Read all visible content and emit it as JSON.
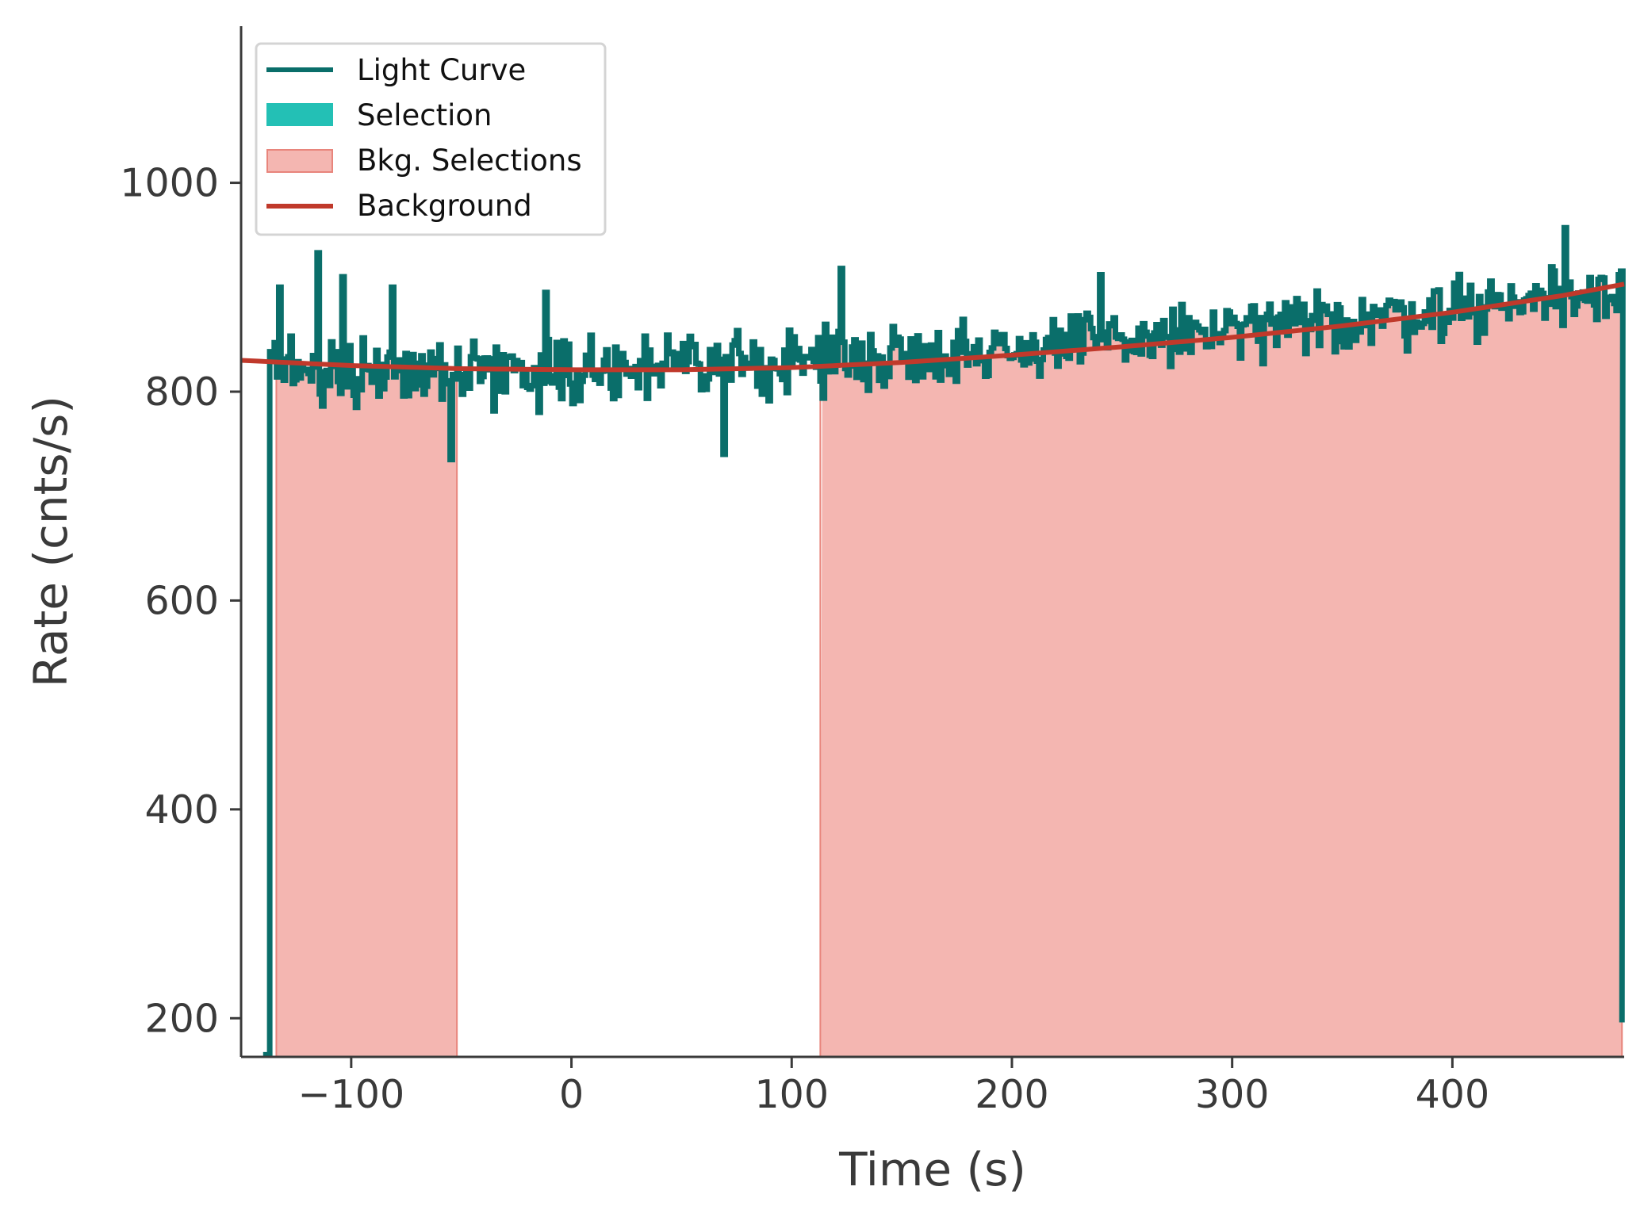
{
  "chart_data": {
    "type": "line",
    "xlabel": "Time (s)",
    "ylabel": "Rate (cnts/s)",
    "xlim": [
      -150,
      478
    ],
    "ylim": [
      163,
      1150
    ],
    "x_ticks": [
      -100,
      0,
      100,
      200,
      300,
      400
    ],
    "x_tick_labels": [
      "−100",
      "0",
      "100",
      "200",
      "300",
      "400"
    ],
    "y_ticks": [
      200,
      400,
      600,
      800,
      1000
    ],
    "y_tick_labels": [
      "200",
      "400",
      "600",
      "800",
      "1000"
    ],
    "grid": false,
    "legend_position": "top-left",
    "legend": [
      {
        "label": "Light Curve",
        "kind": "line",
        "color": "#0a6e6a"
      },
      {
        "label": "Selection",
        "kind": "patch",
        "color": "#23c0b5"
      },
      {
        "label": "Bkg. Selections",
        "kind": "patch",
        "color": "#f4b6b1"
      },
      {
        "label": "Background",
        "kind": "line",
        "color": "#c0392b"
      }
    ],
    "colors": {
      "light_curve": "#0a6e6a",
      "selection": "#23c0b5",
      "bkg_fill": "#f4b6b1",
      "bkg_edge": "#e8857c",
      "background": "#c0392b",
      "axis": "#3a3a3a"
    },
    "series": [
      {
        "name": "Light Curve",
        "time_start": -137,
        "time_end": 477,
        "pre_trigger_rate": 165,
        "post_end_rate": 196,
        "trend_start_rate": 820,
        "trend_dip_rate": 818,
        "trend_end_rate": 900,
        "noise_amplitude": 35
      },
      {
        "name": "Background",
        "x": [
          -150,
          -100,
          -50,
          0,
          50,
          100,
          150,
          200,
          250,
          300,
          350,
          400,
          450,
          478
        ],
        "y": [
          830,
          825,
          822,
          821,
          821,
          823,
          828,
          835,
          843,
          852,
          863,
          876,
          892,
          903
        ]
      }
    ],
    "bkg_selections": [
      {
        "start": -134,
        "end": -52
      },
      {
        "start": 113,
        "end": 477
      }
    ],
    "notable_spikes": [
      {
        "x": -133,
        "y": 900
      },
      {
        "x": -115,
        "y": 933
      },
      {
        "x": -104,
        "y": 910
      },
      {
        "x": -82,
        "y": 900
      },
      {
        "x": -55,
        "y": 735
      },
      {
        "x": -12,
        "y": 895
      },
      {
        "x": 69,
        "y": 740
      },
      {
        "x": 122,
        "y": 918
      },
      {
        "x": 240,
        "y": 912
      },
      {
        "x": 451,
        "y": 957
      }
    ]
  }
}
